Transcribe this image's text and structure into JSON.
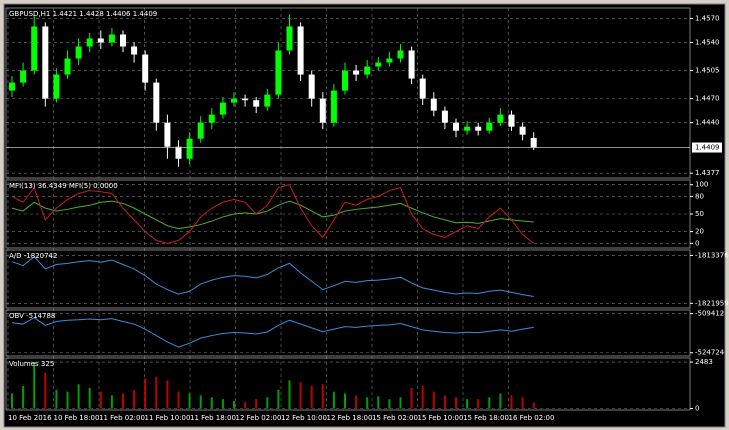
{
  "chart_data": [
    {
      "type": "candlestick",
      "title": "GBPUSD,H1  1.4421 1.4428 1.4406 1.4409",
      "open": [
        1.448,
        1.449,
        1.4505,
        1.456,
        1.447,
        1.45,
        1.452,
        1.4535,
        1.4545,
        1.454,
        1.455,
        1.4535,
        1.4525,
        1.449,
        1.444,
        1.441,
        1.4395,
        1.442,
        1.444,
        1.445,
        1.4465,
        1.447,
        1.4468,
        1.446,
        1.4475,
        1.453,
        1.456,
        1.45,
        1.447,
        1.444,
        1.448,
        1.4505,
        1.45,
        1.451,
        1.4515,
        1.452,
        1.453,
        1.4495,
        1.447,
        1.4455,
        1.444,
        1.443,
        1.4435,
        1.443,
        1.444,
        1.445,
        1.4435,
        1.4421
      ],
      "high": [
        1.4498,
        1.4515,
        1.4575,
        1.4565,
        1.4508,
        1.453,
        1.4545,
        1.4552,
        1.4555,
        1.4558,
        1.4555,
        1.454,
        1.453,
        1.4495,
        1.445,
        1.4418,
        1.4428,
        1.4448,
        1.4458,
        1.4472,
        1.4478,
        1.4475,
        1.4472,
        1.4482,
        1.454,
        1.4575,
        1.4565,
        1.4505,
        1.4478,
        1.4488,
        1.4515,
        1.4512,
        1.4518,
        1.4522,
        1.4528,
        1.4538,
        1.4535,
        1.45,
        1.4478,
        1.446,
        1.4445,
        1.4442,
        1.444,
        1.4446,
        1.4458,
        1.4455,
        1.444,
        1.4428
      ],
      "low": [
        1.4472,
        1.4485,
        1.45,
        1.446,
        1.4465,
        1.4495,
        1.4512,
        1.4528,
        1.4532,
        1.4535,
        1.4528,
        1.4515,
        1.448,
        1.443,
        1.4395,
        1.4385,
        1.4388,
        1.4415,
        1.4432,
        1.4445,
        1.446,
        1.446,
        1.4452,
        1.4455,
        1.447,
        1.4525,
        1.4492,
        1.446,
        1.4432,
        1.4435,
        1.4475,
        1.4492,
        1.4495,
        1.4505,
        1.451,
        1.4515,
        1.4488,
        1.4462,
        1.4448,
        1.4432,
        1.4422,
        1.4425,
        1.4424,
        1.4426,
        1.4436,
        1.443,
        1.4418,
        1.4406
      ],
      "close": [
        1.449,
        1.4505,
        1.456,
        1.447,
        1.45,
        1.452,
        1.4535,
        1.4545,
        1.454,
        1.455,
        1.4535,
        1.4525,
        1.449,
        1.444,
        1.441,
        1.4395,
        1.442,
        1.444,
        1.445,
        1.4465,
        1.447,
        1.4468,
        1.446,
        1.4475,
        1.453,
        1.456,
        1.45,
        1.447,
        1.444,
        1.448,
        1.4505,
        1.45,
        1.451,
        1.4515,
        1.452,
        1.453,
        1.4495,
        1.447,
        1.4455,
        1.444,
        1.443,
        1.4435,
        1.443,
        1.444,
        1.445,
        1.4435,
        1.4425,
        1.4409
      ],
      "up_color": "#00ff00",
      "down_color": "#ffffff",
      "ylim": [
        1.4371,
        1.4583
      ],
      "yticks": [
        {
          "value": 1.457,
          "label": "1.4570"
        },
        {
          "value": 1.454,
          "label": "1.4540"
        },
        {
          "value": 1.4505,
          "label": "1.4505"
        },
        {
          "value": 1.447,
          "label": "1.4470"
        },
        {
          "value": 1.444,
          "label": "1.4440"
        },
        {
          "value": 1.4377,
          "label": "1.4377"
        }
      ],
      "last_price": {
        "value": 1.4409,
        "label": "1.4409"
      },
      "grid": true
    },
    {
      "type": "line",
      "title": "MFI(13) 36.4349  MFI(5) 0.0000",
      "series": [
        {
          "color": "#4caf32",
          "values": [
            60,
            55,
            70,
            60,
            55,
            58,
            62,
            65,
            70,
            72,
            68,
            60,
            50,
            40,
            30,
            25,
            28,
            32,
            38,
            45,
            50,
            52,
            50,
            55,
            65,
            72,
            65,
            55,
            45,
            48,
            55,
            58,
            60,
            62,
            65,
            68,
            60,
            52,
            45,
            40,
            35,
            36,
            34,
            38,
            42,
            40,
            38,
            36.4349
          ]
        },
        {
          "color": "#c81e1e",
          "values": [
            80,
            70,
            95,
            40,
            60,
            75,
            85,
            90,
            88,
            85,
            60,
            40,
            20,
            5,
            0,
            5,
            20,
            45,
            60,
            70,
            75,
            70,
            50,
            65,
            95,
            100,
            60,
            30,
            10,
            40,
            70,
            65,
            75,
            80,
            90,
            95,
            50,
            25,
            15,
            10,
            20,
            30,
            25,
            45,
            60,
            40,
            15,
            0
          ]
        }
      ],
      "ylim": [
        -8,
        108
      ],
      "yticks": [
        100,
        80,
        50,
        20,
        0
      ],
      "grid": true
    },
    {
      "type": "line",
      "title": "A/D -1820742",
      "series": [
        {
          "color": "#3c8cdc",
          "values": [
            -1814500,
            -1815200,
            -1813600,
            -1815800,
            -1815000,
            -1814800,
            -1814500,
            -1814300,
            -1814600,
            -1814200,
            -1815000,
            -1815800,
            -1817000,
            -1818500,
            -1819500,
            -1820300,
            -1819800,
            -1818500,
            -1817800,
            -1817300,
            -1817000,
            -1817100,
            -1817400,
            -1816800,
            -1815600,
            -1814800,
            -1816500,
            -1818000,
            -1819500,
            -1818800,
            -1818000,
            -1818200,
            -1817900,
            -1817800,
            -1817600,
            -1817300,
            -1818300,
            -1819200,
            -1819600,
            -1820000,
            -1820300,
            -1820100,
            -1820200,
            -1819800,
            -1819600,
            -1820000,
            -1820400,
            -1820742
          ]
        }
      ],
      "ylim": [
        -1822800,
        -1812400
      ],
      "yticks": [
        -1813376,
        -1821959
      ],
      "grid": true
    },
    {
      "type": "line",
      "title": "OBV -514788",
      "series": [
        {
          "color": "#3c8cdc",
          "values": [
            -513000,
            -513500,
            -511000,
            -514000,
            -512500,
            -512000,
            -511800,
            -511500,
            -511800,
            -511400,
            -512500,
            -513500,
            -515500,
            -518000,
            -520500,
            -522500,
            -521000,
            -519000,
            -518000,
            -517200,
            -516800,
            -517000,
            -517400,
            -516600,
            -514000,
            -512000,
            -513500,
            -515000,
            -516500,
            -515500,
            -514500,
            -514800,
            -514300,
            -514000,
            -513800,
            -513300,
            -514500,
            -515800,
            -516300,
            -516800,
            -517000,
            -516700,
            -516900,
            -516300,
            -515800,
            -516300,
            -515500,
            -514788
          ]
        }
      ],
      "ylim": [
        -526000,
        -508000
      ],
      "yticks": [
        -509412,
        -524724
      ],
      "grid": true
    },
    {
      "type": "bar",
      "title": "Volumes 325",
      "values": [
        800,
        1200,
        2483,
        1900,
        1000,
        900,
        1300,
        1100,
        900,
        700,
        800,
        1000,
        1600,
        1700,
        1500,
        900,
        800,
        700,
        600,
        500,
        400,
        350,
        500,
        600,
        1000,
        1500,
        1400,
        1200,
        1300,
        900,
        800,
        700,
        600,
        650,
        500,
        600,
        1100,
        1200,
        900,
        700,
        600,
        500,
        500,
        600,
        800,
        700,
        600,
        325
      ],
      "up_color": "#00a000",
      "down_color": "#c00000",
      "ylim": [
        -80,
        2700
      ],
      "yticks": [
        2483,
        0
      ],
      "grid": true
    }
  ],
  "time_axis": [
    "10 Feb 2016",
    "10 Feb 18:00",
    "11 Feb 02:00",
    "11 Feb 10:00",
    "11 Feb 18:00",
    "12 Feb 02:00",
    "12 Feb 10:00",
    "12 Feb 18:00",
    "15 Feb 02:00",
    "15 Feb 10:00",
    "15 Feb 18:00",
    "16 Feb 02:00"
  ]
}
